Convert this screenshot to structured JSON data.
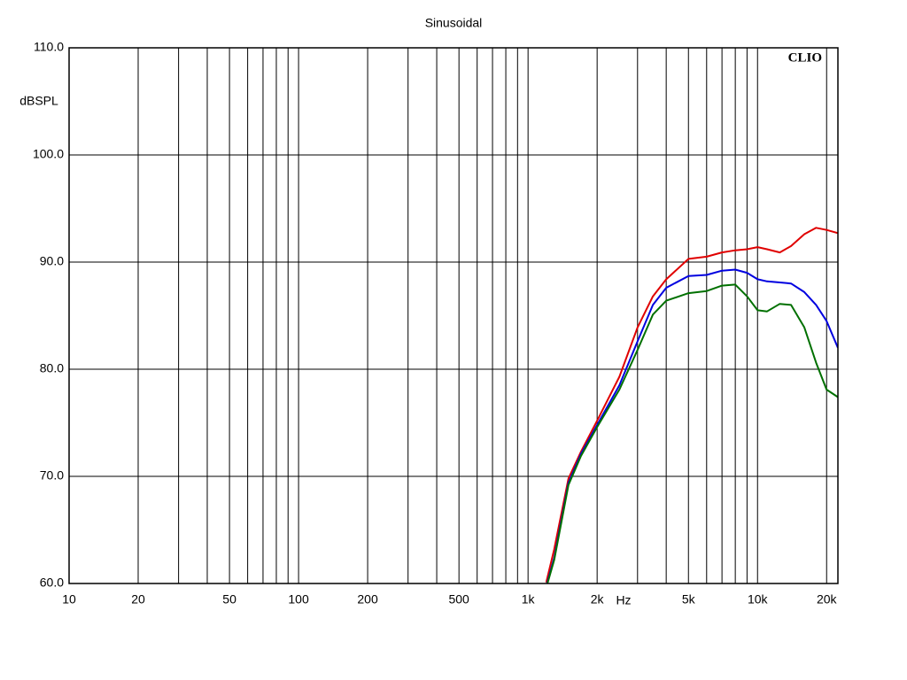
{
  "chart_data": {
    "type": "line",
    "title": "Sinusoidal",
    "ylabel": "dBSPL",
    "xlabel": "Hz",
    "brand": "CLIO",
    "xscale": "log",
    "grid": true,
    "x": [
      1200,
      1300,
      1500,
      1700,
      2000,
      2500,
      3000,
      3500,
      4000,
      5000,
      6000,
      7000,
      8000,
      9000,
      10000,
      11000,
      12500,
      14000,
      16000,
      18000,
      20000,
      22400
    ],
    "series": [
      {
        "color": "#e00000",
        "values": [
          60.1,
          63.2,
          69.8,
          72.3,
          75.2,
          79.3,
          83.9,
          86.8,
          88.4,
          90.3,
          90.5,
          90.9,
          91.1,
          91.2,
          91.4,
          91.2,
          90.9,
          91.5,
          92.6,
          93.2,
          93.0,
          92.7
        ]
      },
      {
        "color": "#0000e0",
        "values": [
          59.7,
          62.4,
          69.4,
          72.1,
          74.8,
          78.5,
          82.6,
          86.0,
          87.6,
          88.7,
          88.8,
          89.2,
          89.3,
          89.0,
          88.4,
          88.2,
          88.1,
          88.0,
          87.2,
          86.0,
          84.5,
          82.0
        ]
      },
      {
        "color": "#007000",
        "values": [
          59.6,
          62.2,
          69.2,
          71.9,
          74.6,
          78.1,
          81.8,
          85.1,
          86.4,
          87.1,
          87.3,
          87.8,
          87.9,
          86.8,
          85.5,
          85.4,
          86.1,
          86.0,
          83.9,
          80.6,
          78.1,
          77.4
        ]
      }
    ],
    "xlim": [
      10,
      22400
    ],
    "ylim": [
      60,
      110
    ],
    "xticks": [
      10,
      20,
      50,
      100,
      200,
      500,
      {
        "value": 1000,
        "label": "1k"
      },
      {
        "value": 2000,
        "label": "2k"
      },
      {
        "value": 5000,
        "label": "5k"
      },
      {
        "value": 10000,
        "label": "10k"
      },
      {
        "value": 20000,
        "label": "20k"
      }
    ],
    "xminor": [
      30,
      40,
      60,
      70,
      80,
      90,
      300,
      400,
      600,
      700,
      800,
      900,
      3000,
      4000,
      6000,
      7000,
      8000,
      9000
    ],
    "yticks": [
      {
        "value": 60,
        "label": "60.0"
      },
      {
        "value": 70,
        "label": "70.0"
      },
      {
        "value": 80,
        "label": "80.0"
      },
      {
        "value": 90,
        "label": "90.0"
      },
      {
        "value": 100,
        "label": "100.0"
      },
      {
        "value": 110,
        "label": "110.0"
      }
    ]
  }
}
